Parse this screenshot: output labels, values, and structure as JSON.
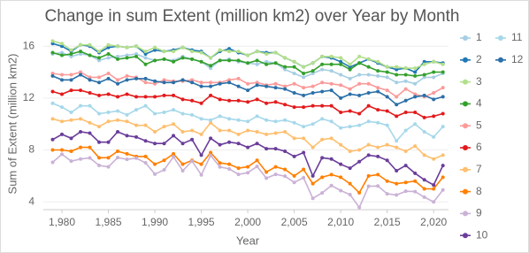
{
  "chart_data": {
    "type": "line",
    "title": "Change in sum Extent (million km2) over Year by Month",
    "x_label": "Year",
    "y_label": "Sum of Extent (million km2)",
    "x": [
      1979,
      1980,
      1981,
      1982,
      1983,
      1984,
      1985,
      1986,
      1987,
      1988,
      1989,
      1990,
      1991,
      1992,
      1993,
      1994,
      1995,
      1996,
      1997,
      1998,
      1999,
      2000,
      2001,
      2002,
      2003,
      2004,
      2005,
      2006,
      2007,
      2008,
      2009,
      2010,
      2011,
      2012,
      2013,
      2014,
      2015,
      2016,
      2017,
      2018,
      2019,
      2020,
      2021
    ],
    "xlim": [
      1978,
      2021.6
    ],
    "xticks": [
      {
        "value": 1980,
        "label": "1,980"
      },
      {
        "value": 1985,
        "label": "1,985"
      },
      {
        "value": 1990,
        "label": "1,990"
      },
      {
        "value": 1995,
        "label": "1,995"
      },
      {
        "value": 2000,
        "label": "2,000"
      },
      {
        "value": 2005,
        "label": "2,005"
      },
      {
        "value": 2010,
        "label": "2,010"
      },
      {
        "value": 2015,
        "label": "2,015"
      },
      {
        "value": 2020,
        "label": "2,020"
      }
    ],
    "ylim": [
      3.4,
      16.9
    ],
    "yticks": [
      4,
      8,
      12,
      16
    ],
    "grid": true,
    "legend": "right",
    "series": [
      {
        "name": "1",
        "color": "#a6cee3",
        "values": [
          15.4,
          15.5,
          15.2,
          15.4,
          15.3,
          14.9,
          15.1,
          15.2,
          15.3,
          15.4,
          15.1,
          14.9,
          15.0,
          14.9,
          15.2,
          15.0,
          14.8,
          14.3,
          14.9,
          15.0,
          14.8,
          14.7,
          14.6,
          14.8,
          14.7,
          14.2,
          13.9,
          13.6,
          13.9,
          14.2,
          14.1,
          13.8,
          13.5,
          13.8,
          13.8,
          13.7,
          13.6,
          13.2,
          13.3,
          13.1,
          13.6,
          13.6,
          13.9
        ]
      },
      {
        "name": "2",
        "color": "#1f78b4",
        "values": [
          16.2,
          16.0,
          15.6,
          16.1,
          16.0,
          15.5,
          15.9,
          16.0,
          15.9,
          16.0,
          15.4,
          15.7,
          15.6,
          15.7,
          15.9,
          15.7,
          15.6,
          15.1,
          15.6,
          15.8,
          15.5,
          15.3,
          15.6,
          15.5,
          15.5,
          15.1,
          14.8,
          14.4,
          14.7,
          15.2,
          15.1,
          14.8,
          14.4,
          14.7,
          15.0,
          14.7,
          14.4,
          14.2,
          14.3,
          14.0,
          14.8,
          14.8,
          14.7
        ]
      },
      {
        "name": "3",
        "color": "#b2df8a",
        "values": [
          16.4,
          16.2,
          15.7,
          16.1,
          16.1,
          15.6,
          16.1,
          16.0,
          15.9,
          16.0,
          15.6,
          15.9,
          15.6,
          15.6,
          15.9,
          15.6,
          15.5,
          15.1,
          15.7,
          15.6,
          15.6,
          15.3,
          15.6,
          15.4,
          15.5,
          15.1,
          14.8,
          14.4,
          14.7,
          15.2,
          15.2,
          15.1,
          14.6,
          15.2,
          15.0,
          14.8,
          14.4,
          14.4,
          14.3,
          14.3,
          14.6,
          14.8,
          14.6
        ]
      },
      {
        "name": "4",
        "color": "#33a02c",
        "values": [
          15.5,
          15.3,
          15.4,
          15.6,
          15.3,
          15.1,
          15.4,
          15.0,
          15.1,
          15.2,
          14.6,
          14.9,
          15.0,
          14.8,
          15.1,
          15.0,
          14.8,
          14.5,
          14.9,
          14.9,
          14.9,
          14.7,
          14.9,
          14.6,
          14.7,
          14.4,
          14.4,
          13.9,
          14.1,
          14.6,
          14.6,
          14.6,
          14.2,
          14.7,
          14.4,
          14.1,
          14.0,
          13.8,
          13.8,
          13.7,
          13.8,
          14.0,
          14.0
        ]
      },
      {
        "name": "5",
        "color": "#fb9a99",
        "values": [
          13.9,
          13.8,
          13.8,
          14.0,
          13.6,
          13.6,
          13.9,
          13.4,
          13.7,
          13.6,
          13.2,
          13.1,
          13.4,
          13.3,
          13.3,
          13.4,
          13.2,
          13.2,
          13.2,
          13.4,
          13.5,
          13.1,
          13.2,
          13.0,
          13.1,
          12.9,
          13.1,
          12.8,
          12.9,
          13.2,
          13.1,
          13.0,
          12.7,
          13.1,
          13.1,
          12.8,
          12.6,
          12.1,
          12.7,
          12.3,
          12.1,
          12.4,
          12.8
        ]
      },
      {
        "name": "6",
        "color": "#e31a1c",
        "values": [
          12.5,
          12.3,
          12.6,
          12.6,
          12.4,
          12.2,
          12.3,
          12.1,
          12.3,
          12.1,
          12.1,
          12.1,
          12.2,
          12.2,
          11.9,
          11.8,
          11.6,
          12.2,
          11.9,
          11.8,
          11.8,
          11.7,
          11.9,
          11.6,
          11.7,
          11.5,
          11.3,
          11.3,
          11.4,
          11.4,
          11.4,
          10.9,
          11.0,
          10.8,
          11.4,
          11.1,
          11.0,
          10.6,
          10.9,
          10.9,
          10.5,
          10.6,
          10.8
        ]
      },
      {
        "name": "7",
        "color": "#fdbf6f",
        "values": [
          10.4,
          10.2,
          10.3,
          10.4,
          10.1,
          9.8,
          10.2,
          10.3,
          10.2,
          9.9,
          9.9,
          9.4,
          9.8,
          10.0,
          9.4,
          9.5,
          9.2,
          10.1,
          9.5,
          9.5,
          9.2,
          9.5,
          9.4,
          9.2,
          9.3,
          9.4,
          8.9,
          8.9,
          8.2,
          8.8,
          8.9,
          8.4,
          7.9,
          8.0,
          8.4,
          8.2,
          8.4,
          8.2,
          7.9,
          8.3,
          7.6,
          7.3,
          7.6
        ]
      },
      {
        "name": "8",
        "color": "#ff7f00",
        "values": [
          8.0,
          8.0,
          7.9,
          8.2,
          8.2,
          7.4,
          7.4,
          7.9,
          7.7,
          7.5,
          7.5,
          6.9,
          7.2,
          7.7,
          6.9,
          7.2,
          6.9,
          7.8,
          7.0,
          6.9,
          6.6,
          6.7,
          7.2,
          6.3,
          6.7,
          6.5,
          6.0,
          6.5,
          5.4,
          5.9,
          6.1,
          5.9,
          5.4,
          4.7,
          6.0,
          6.1,
          5.6,
          5.4,
          5.5,
          5.6,
          5.0,
          5.0,
          5.9
        ]
      },
      {
        "name": "9",
        "color": "#cab2d6",
        "values": [
          7.05,
          7.67,
          7.14,
          7.3,
          7.39,
          6.81,
          6.7,
          7.41,
          7.28,
          7.37,
          7.01,
          6.14,
          6.47,
          7.47,
          6.4,
          7.14,
          6.08,
          7.58,
          6.69,
          6.54,
          6.12,
          6.25,
          6.73,
          5.83,
          6.12,
          5.98,
          5.5,
          5.86,
          4.27,
          4.69,
          5.26,
          4.87,
          4.56,
          3.57,
          5.21,
          5.22,
          4.62,
          4.53,
          4.82,
          4.79,
          4.36,
          4.0,
          4.92
        ]
      },
      {
        "name": "10",
        "color": "#6a3d9a",
        "values": [
          8.8,
          9.2,
          8.9,
          9.4,
          9.3,
          8.6,
          8.6,
          9.4,
          9.1,
          9.0,
          8.7,
          8.5,
          8.5,
          9.1,
          8.5,
          8.8,
          7.6,
          8.9,
          8.4,
          8.6,
          8.5,
          8.2,
          8.5,
          8.1,
          8.1,
          7.9,
          7.5,
          7.8,
          6.0,
          7.4,
          7.3,
          6.9,
          6.6,
          7.1,
          7.6,
          7.5,
          7.2,
          6.4,
          6.8,
          6.2,
          5.7,
          5.3,
          6.8
        ]
      },
      {
        "name": "11",
        "color": "#a6d8ea",
        "values": [
          11.6,
          11.3,
          10.9,
          11.4,
          11.4,
          10.8,
          10.9,
          11.0,
          10.7,
          11.1,
          11.4,
          10.8,
          10.9,
          11.1,
          10.8,
          10.7,
          10.4,
          10.3,
          10.6,
          10.4,
          10.3,
          10.2,
          10.6,
          10.3,
          10.2,
          10.3,
          10.1,
          9.8,
          10.0,
          10.4,
          10.2,
          9.7,
          9.8,
          9.9,
          10.2,
          10.1,
          9.9,
          8.7,
          9.5,
          10.0,
          9.4,
          9.0,
          9.8
        ]
      },
      {
        "name": "12",
        "color": "#2a6fa8",
        "values": [
          13.7,
          13.4,
          13.4,
          13.8,
          13.4,
          13.2,
          13.5,
          13.1,
          13.4,
          13.5,
          13.5,
          13.3,
          13.2,
          13.2,
          13.4,
          13.2,
          12.9,
          12.9,
          13.1,
          13.2,
          12.9,
          12.6,
          13.0,
          12.9,
          12.8,
          12.7,
          12.4,
          12.2,
          12.4,
          12.5,
          12.6,
          12.0,
          12.3,
          12.2,
          12.4,
          12.5,
          12.1,
          11.5,
          11.8,
          12.1,
          12.2,
          11.9,
          12.1
        ]
      }
    ]
  }
}
